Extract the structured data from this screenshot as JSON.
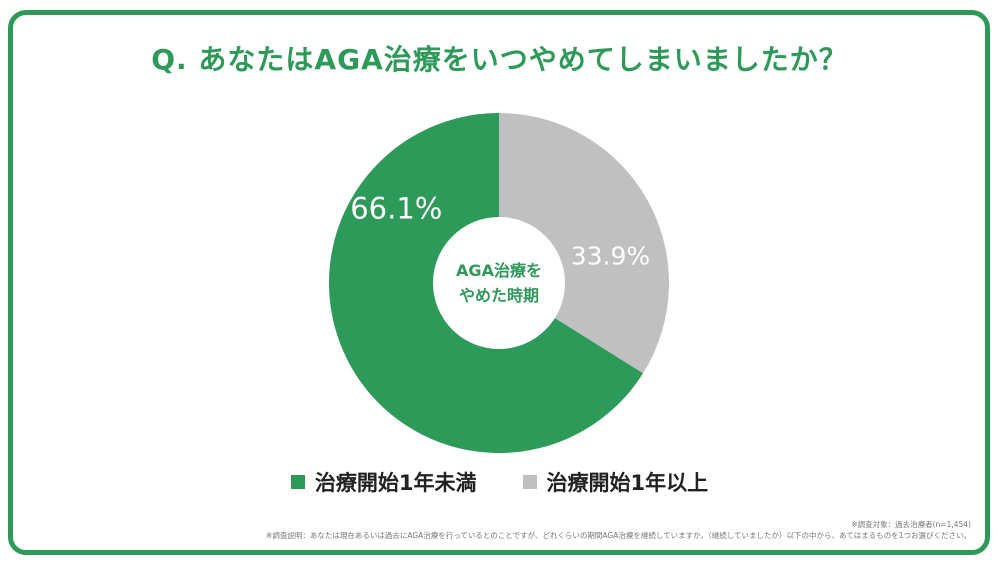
{
  "title": "Q. あなたはAGA治療をいつやめてしまいましたか？",
  "colors": {
    "accent": "#2e9a5a",
    "gray": "#c0c0c0"
  },
  "chart_data": {
    "type": "pie",
    "center_label_lines": [
      "AGA治療を",
      "やめた時期"
    ],
    "slices": [
      {
        "label": "治療開始1年未満",
        "value": 66.1,
        "display": "66.1%",
        "color": "#2e9a5a"
      },
      {
        "label": "治療開始1年以上",
        "value": 33.9,
        "display": "33.9%",
        "color": "#c0c0c0"
      }
    ]
  },
  "notes": {
    "target": "※調査対象：過去治療者(n=1,454)",
    "method": "※調査説明：あなたは現在あるいは過去にAGA治療を行っているとのことですが、どれくらいの期間AGA治療を継続していますか。（継続していましたか）以下の中から、あてはまるものを1つお選びください。"
  }
}
